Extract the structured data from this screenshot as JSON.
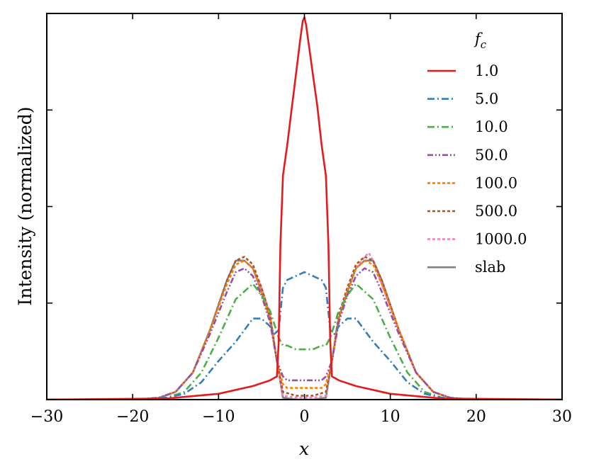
{
  "chart_data": {
    "type": "line",
    "title": "",
    "xlabel": "x",
    "ylabel": "Intensity (normalized)",
    "xlim": [
      -30,
      30
    ],
    "ylim": [
      0,
      1.0
    ],
    "xticks": [
      -30,
      -20,
      -10,
      0,
      10,
      20,
      30
    ],
    "xtick_labels": [
      "−30",
      "−20",
      "−10",
      "0",
      "10",
      "20",
      "30"
    ],
    "yticks": [
      0.25,
      0.5,
      0.75
    ],
    "grid": false,
    "legend": {
      "title_base": "f",
      "title_sub": "c",
      "placement": "top-right"
    },
    "series": [
      {
        "name": "1.0",
        "color": "#e41a1c",
        "dash": "solid",
        "x": [
          -30,
          -16,
          -10,
          -6,
          -4,
          -3.2,
          -3,
          -2.8,
          -2.5,
          -2,
          -1.5,
          -1,
          -0.5,
          -0.2,
          0,
          0.2,
          0.5,
          1,
          1.5,
          2,
          2.5,
          2.8,
          3,
          3.2,
          4,
          6,
          10,
          16,
          30
        ],
        "y": [
          0,
          0.003,
          0.015,
          0.035,
          0.05,
          0.06,
          0.15,
          0.4,
          0.58,
          0.66,
          0.75,
          0.84,
          0.93,
          0.98,
          0.99,
          0.97,
          0.92,
          0.84,
          0.76,
          0.66,
          0.58,
          0.4,
          0.15,
          0.06,
          0.05,
          0.035,
          0.015,
          0.003,
          0
        ]
      },
      {
        "name": "5.0",
        "color": "#377eb8",
        "dash": "10,4,2,4",
        "x": [
          -30,
          -20,
          -16,
          -14,
          -12,
          -10,
          -8,
          -6,
          -5,
          -4,
          -3.5,
          -3,
          -2.5,
          -2,
          -1,
          0,
          1,
          2,
          2.5,
          3,
          3.5,
          4,
          5,
          6,
          8,
          10,
          12,
          14,
          16,
          20,
          30
        ],
        "y": [
          0,
          0,
          0.005,
          0.015,
          0.045,
          0.1,
          0.15,
          0.21,
          0.21,
          0.19,
          0.17,
          0.18,
          0.29,
          0.31,
          0.32,
          0.33,
          0.32,
          0.31,
          0.29,
          0.18,
          0.17,
          0.19,
          0.21,
          0.21,
          0.15,
          0.1,
          0.045,
          0.015,
          0.005,
          0,
          0
        ]
      },
      {
        "name": "10.0",
        "color": "#4daf4a",
        "dash": "10,4,2,4",
        "x": [
          -30,
          -20,
          -16,
          -14,
          -12,
          -10,
          -8,
          -6,
          -5,
          -4,
          -3,
          -2.5,
          -2,
          -1,
          0,
          1,
          2,
          2.5,
          3,
          4,
          5,
          6,
          8,
          10,
          12,
          14,
          16,
          20,
          30
        ],
        "y": [
          0,
          0,
          0.005,
          0.02,
          0.07,
          0.16,
          0.26,
          0.3,
          0.27,
          0.23,
          0.16,
          0.14,
          0.14,
          0.13,
          0.13,
          0.13,
          0.14,
          0.14,
          0.16,
          0.23,
          0.27,
          0.3,
          0.26,
          0.16,
          0.07,
          0.02,
          0.005,
          0,
          0
        ]
      },
      {
        "name": "50.0",
        "color": "#984ea3",
        "dash": "8,3,2,3,2,3",
        "x": [
          -30,
          -20,
          -17,
          -15,
          -13,
          -11,
          -9,
          -8,
          -7,
          -6,
          -5,
          -4,
          -3.2,
          -2.5,
          -2,
          -1,
          0,
          1,
          2,
          2.5,
          3.2,
          4,
          5,
          6,
          7,
          8,
          9,
          11,
          13,
          15,
          17,
          20,
          30
        ],
        "y": [
          0,
          0,
          0.005,
          0.02,
          0.07,
          0.17,
          0.28,
          0.33,
          0.34,
          0.32,
          0.27,
          0.2,
          0.1,
          0.06,
          0.05,
          0.05,
          0.05,
          0.05,
          0.05,
          0.06,
          0.1,
          0.2,
          0.27,
          0.32,
          0.34,
          0.33,
          0.28,
          0.17,
          0.07,
          0.02,
          0.005,
          0,
          0
        ]
      },
      {
        "name": "100.0",
        "color": "#ff7f00",
        "dash": "4,3",
        "x": [
          -30,
          -20,
          -17,
          -15,
          -13,
          -11,
          -9,
          -8,
          -7,
          -6,
          -5,
          -4,
          -3.2,
          -2.5,
          -2,
          -1,
          0,
          1,
          2,
          2.5,
          3.2,
          4,
          5,
          6,
          7,
          8,
          9,
          11,
          13,
          15,
          17,
          20,
          30
        ],
        "y": [
          0,
          0,
          0.004,
          0.02,
          0.07,
          0.18,
          0.3,
          0.35,
          0.36,
          0.34,
          0.28,
          0.21,
          0.1,
          0.04,
          0.03,
          0.03,
          0.03,
          0.03,
          0.03,
          0.04,
          0.1,
          0.21,
          0.28,
          0.34,
          0.36,
          0.35,
          0.3,
          0.18,
          0.07,
          0.02,
          0.004,
          0,
          0
        ]
      },
      {
        "name": "500.0",
        "color": "#a65628",
        "dash": "4,3",
        "x": [
          -30,
          -20,
          -17,
          -15,
          -13,
          -11,
          -9,
          -8,
          -7,
          -6,
          -5,
          -4,
          -3.2,
          -2.5,
          -1,
          0,
          1,
          2.5,
          3.2,
          4,
          5,
          6,
          7,
          8,
          9,
          11,
          13,
          15,
          17,
          20,
          30
        ],
        "y": [
          0,
          0,
          0.004,
          0.02,
          0.07,
          0.18,
          0.31,
          0.36,
          0.37,
          0.35,
          0.29,
          0.22,
          0.1,
          0.02,
          0.01,
          0.01,
          0.01,
          0.02,
          0.1,
          0.22,
          0.29,
          0.35,
          0.37,
          0.36,
          0.31,
          0.18,
          0.07,
          0.02,
          0.004,
          0,
          0
        ]
      },
      {
        "name": "1000.0",
        "color": "#f781bf",
        "dash": "4,3",
        "x": [
          -30,
          -20,
          -17,
          -15,
          -13,
          -11,
          -9,
          -8,
          -7,
          -6,
          -5,
          -4,
          -3.2,
          -2.5,
          -1,
          0,
          1,
          2.5,
          3.2,
          4,
          5,
          6,
          7,
          7.5,
          8,
          9,
          11,
          13,
          15,
          17,
          20,
          30
        ],
        "y": [
          0,
          0,
          0.004,
          0.02,
          0.07,
          0.18,
          0.3,
          0.35,
          0.36,
          0.34,
          0.29,
          0.22,
          0.1,
          0.01,
          0.005,
          0.005,
          0.005,
          0.01,
          0.1,
          0.22,
          0.29,
          0.34,
          0.37,
          0.38,
          0.36,
          0.3,
          0.18,
          0.07,
          0.02,
          0.004,
          0,
          0
        ]
      },
      {
        "name": "slab",
        "color": "#808080",
        "dash": "solid",
        "x": [
          -30,
          -20,
          -17,
          -15,
          -13,
          -11,
          -9,
          -8,
          -7,
          -6,
          -5,
          -4,
          -3.2,
          -2.5,
          -1,
          0,
          1,
          2.5,
          3.2,
          4,
          5,
          6,
          7,
          8,
          9,
          11,
          13,
          15,
          17,
          20,
          30
        ],
        "y": [
          0,
          0,
          0.004,
          0.02,
          0.07,
          0.18,
          0.31,
          0.36,
          0.36,
          0.34,
          0.28,
          0.21,
          0.1,
          0.005,
          0,
          0,
          0,
          0.005,
          0.1,
          0.21,
          0.28,
          0.34,
          0.36,
          0.36,
          0.31,
          0.18,
          0.07,
          0.02,
          0.004,
          0,
          0
        ]
      }
    ]
  }
}
